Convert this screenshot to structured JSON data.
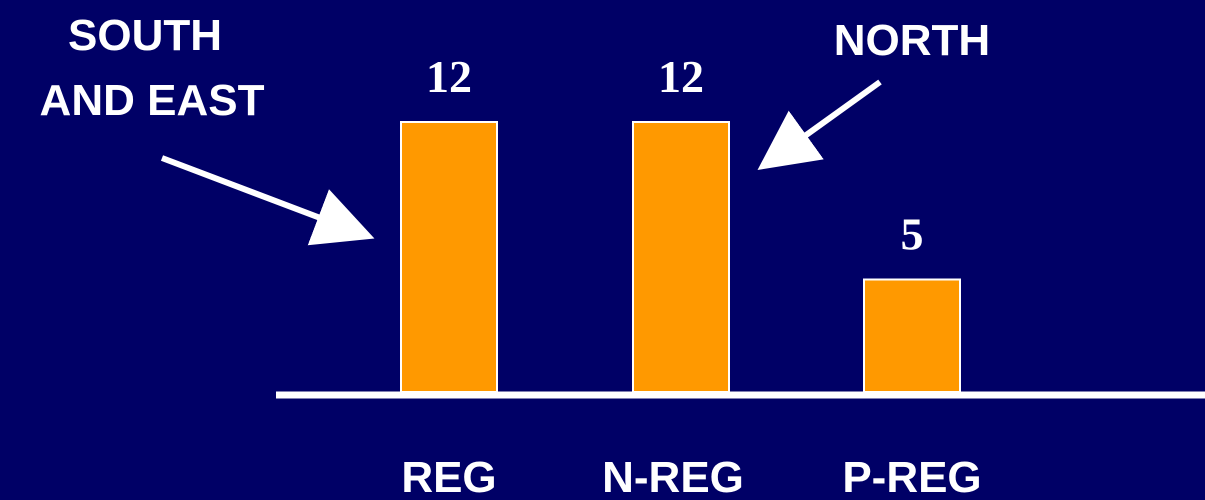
{
  "chart_data": {
    "type": "bar",
    "categories": [
      "REG",
      "N-REG",
      "P-REG"
    ],
    "values": [
      12,
      12,
      5
    ],
    "value_labels": [
      "12",
      "12",
      "5"
    ],
    "title": "",
    "xlabel": "",
    "ylabel": "",
    "ylim": [
      0,
      12
    ],
    "grid": false,
    "annotations": [
      {
        "lines": [
          "SOUTH",
          "AND EAST"
        ],
        "points_to": "REG"
      },
      {
        "lines": [
          "NORTH"
        ],
        "points_to": "N-REG"
      }
    ]
  },
  "colors": {
    "background": "#000066",
    "bar": "#FF9900",
    "bar_outline": "#FFFFFF",
    "text": "#FFFFFF",
    "axis": "#FFFFFF"
  }
}
